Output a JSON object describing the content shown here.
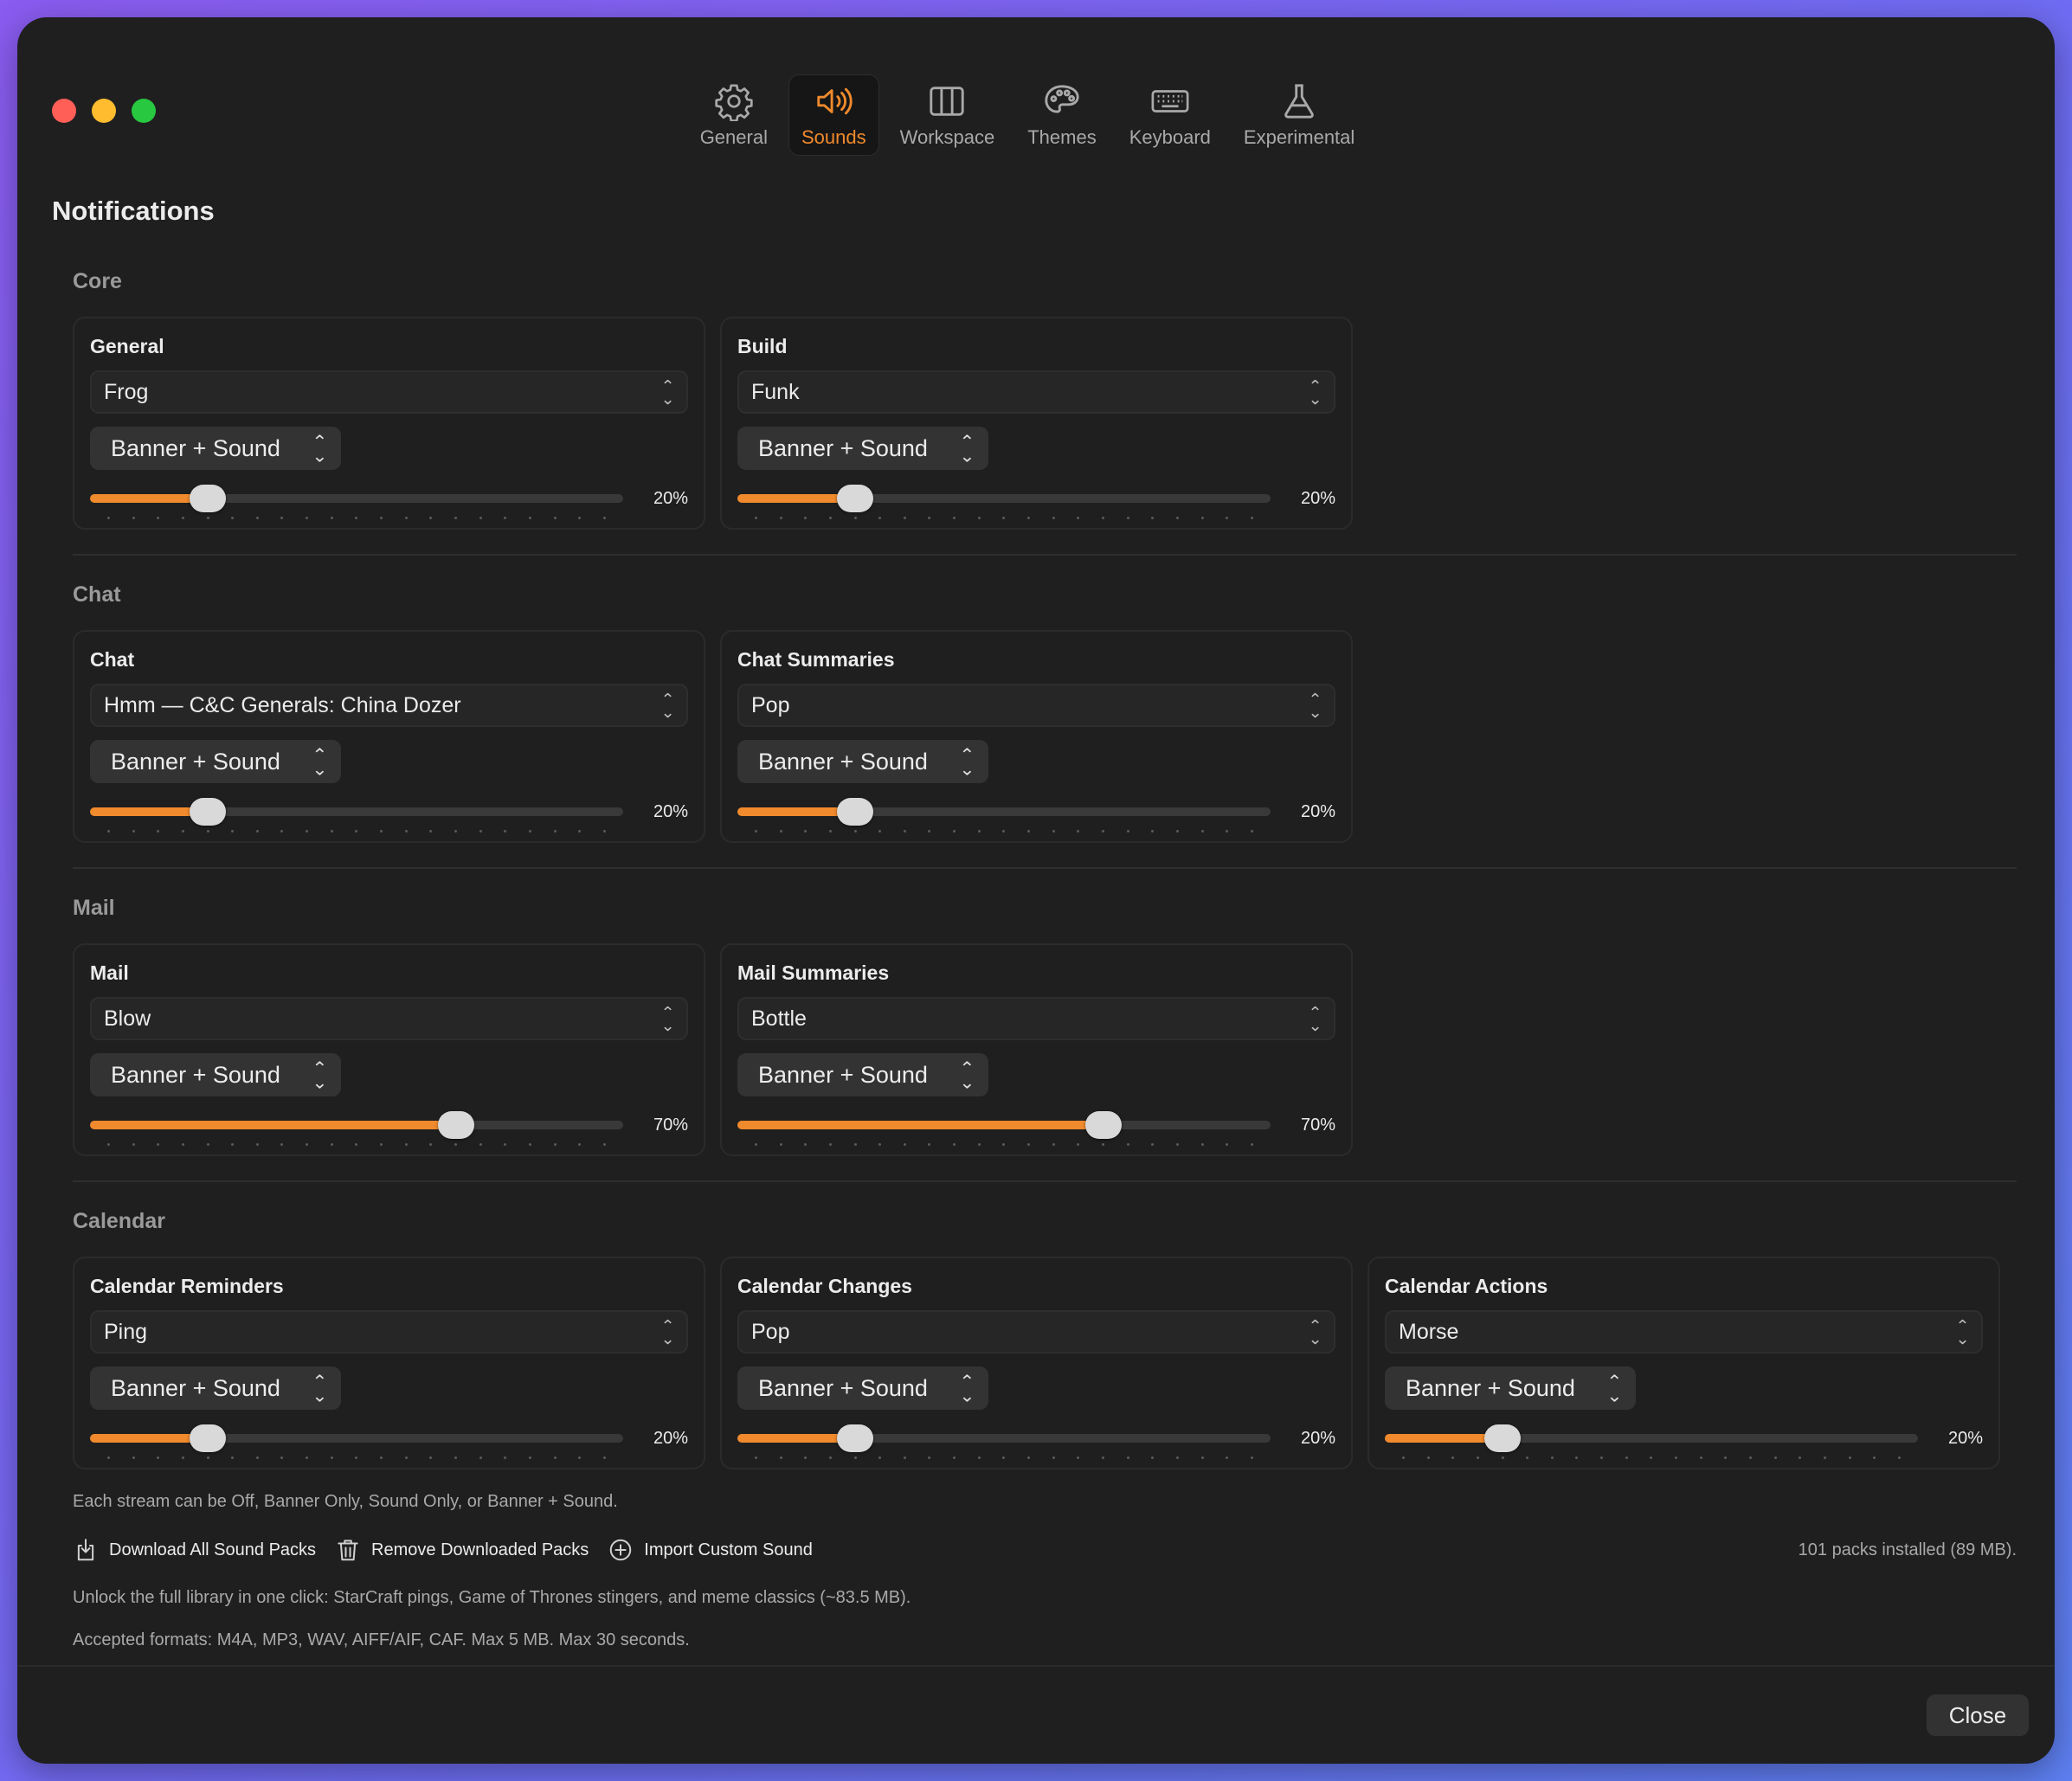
{
  "window": {
    "title": "Notifications"
  },
  "toolbar": {
    "tabs": [
      {
        "label": "General",
        "icon": "gear-icon",
        "active": false
      },
      {
        "label": "Sounds",
        "icon": "speaker-icon",
        "active": true
      },
      {
        "label": "Workspace",
        "icon": "columns-icon",
        "active": false
      },
      {
        "label": "Themes",
        "icon": "palette-icon",
        "active": false
      },
      {
        "label": "Keyboard",
        "icon": "keyboard-icon",
        "active": false
      },
      {
        "label": "Experimental",
        "icon": "flask-icon",
        "active": false
      }
    ]
  },
  "accent_color": "#f08a2c",
  "sections": [
    {
      "title": "Core",
      "cards": [
        {
          "title": "General",
          "sound": "Frog",
          "mode": "Banner + Sound",
          "volume": 20,
          "volume_label": "20%"
        },
        {
          "title": "Build",
          "sound": "Funk",
          "mode": "Banner + Sound",
          "volume": 20,
          "volume_label": "20%"
        }
      ]
    },
    {
      "title": "Chat",
      "cards": [
        {
          "title": "Chat",
          "sound": "Hmm — C&C Generals: China Dozer",
          "mode": "Banner + Sound",
          "volume": 20,
          "volume_label": "20%"
        },
        {
          "title": "Chat Summaries",
          "sound": "Pop",
          "mode": "Banner + Sound",
          "volume": 20,
          "volume_label": "20%"
        }
      ]
    },
    {
      "title": "Mail",
      "cards": [
        {
          "title": "Mail",
          "sound": "Blow",
          "mode": "Banner + Sound",
          "volume": 70,
          "volume_label": "70%"
        },
        {
          "title": "Mail Summaries",
          "sound": "Bottle",
          "mode": "Banner + Sound",
          "volume": 70,
          "volume_label": "70%"
        }
      ]
    },
    {
      "title": "Calendar",
      "cards": [
        {
          "title": "Calendar Reminders",
          "sound": "Ping",
          "mode": "Banner + Sound",
          "volume": 20,
          "volume_label": "20%"
        },
        {
          "title": "Calendar Changes",
          "sound": "Pop",
          "mode": "Banner + Sound",
          "volume": 20,
          "volume_label": "20%"
        },
        {
          "title": "Calendar Actions",
          "sound": "Morse",
          "mode": "Banner + Sound",
          "volume": 20,
          "volume_label": "20%"
        }
      ]
    }
  ],
  "footer_info": {
    "modes_hint": "Each stream can be Off, Banner Only, Sound Only, or Banner + Sound.",
    "download_label": "Download All Sound Packs",
    "remove_label": "Remove Downloaded Packs",
    "import_label": "Import Custom Sound",
    "packs_status": "101 packs installed (89 MB).",
    "unlock_hint": "Unlock the full library in one click: StarCraft pings, Game of Thrones stingers, and meme classics (~83.5 MB).",
    "formats_hint": "Accepted formats: M4A, MP3, WAV, AIFF/AIF, CAF. Max 5 MB. Max 30 seconds."
  },
  "close_label": "Close"
}
